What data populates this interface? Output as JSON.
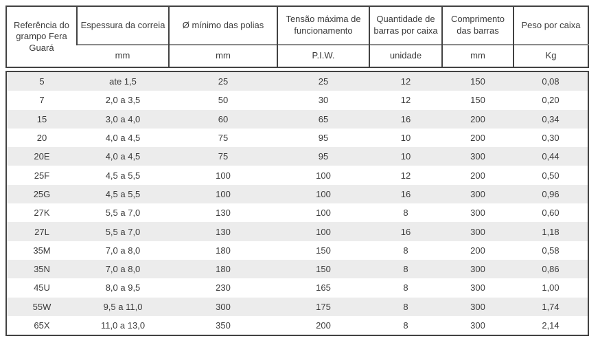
{
  "colors": {
    "border": "#424242",
    "separator": "#8a8a8a",
    "stripe": "#ececec",
    "text": "#3b3b3b"
  },
  "table": {
    "columns": [
      {
        "label": "Referência do grampo Fera Guará",
        "unit": ""
      },
      {
        "label": "Espessura da correia",
        "unit": "mm"
      },
      {
        "label": "Ø mínimo das polias",
        "unit": "mm"
      },
      {
        "label": "Tensão máxima de funcionamento",
        "unit": "P.I.W."
      },
      {
        "label": "Quantidade de barras por caixa",
        "unit": "unidade"
      },
      {
        "label": "Comprimento das barras",
        "unit": "mm"
      },
      {
        "label": "Peso por caixa",
        "unit": "Kg"
      }
    ],
    "rows": [
      [
        "5",
        "ate 1,5",
        "25",
        "25",
        "12",
        "150",
        "0,08"
      ],
      [
        "7",
        "2,0 a 3,5",
        "50",
        "30",
        "12",
        "150",
        "0,20"
      ],
      [
        "15",
        "3,0 a 4,0",
        "60",
        "65",
        "16",
        "200",
        "0,34"
      ],
      [
        "20",
        "4,0 a 4,5",
        "75",
        "95",
        "10",
        "200",
        "0,30"
      ],
      [
        "20E",
        "4,0 a 4,5",
        "75",
        "95",
        "10",
        "300",
        "0,44"
      ],
      [
        "25F",
        "4,5 a 5,5",
        "100",
        "100",
        "12",
        "200",
        "0,50"
      ],
      [
        "25G",
        "4,5 a 5,5",
        "100",
        "100",
        "16",
        "300",
        "0,96"
      ],
      [
        "27K",
        "5,5 a 7,0",
        "130",
        "100",
        "8",
        "300",
        "0,60"
      ],
      [
        "27L",
        "5,5 a 7,0",
        "130",
        "100",
        "16",
        "300",
        "1,18"
      ],
      [
        "35M",
        "7,0 a 8,0",
        "180",
        "150",
        "8",
        "200",
        "0,58"
      ],
      [
        "35N",
        "7,0 a 8,0",
        "180",
        "150",
        "8",
        "300",
        "0,86"
      ],
      [
        "45U",
        "8,0 a 9,5",
        "230",
        "165",
        "8",
        "300",
        "1,00"
      ],
      [
        "55W",
        "9,5 a 11,0",
        "300",
        "175",
        "8",
        "300",
        "1,74"
      ],
      [
        "65X",
        "11,0 a 13,0",
        "350",
        "200",
        "8",
        "300",
        "2,14"
      ]
    ]
  },
  "chart_data": {
    "type": "table",
    "title": "",
    "columns": [
      "Referência do grampo Fera Guará",
      "Espessura da correia (mm)",
      "Ø mínimo das polias (mm)",
      "Tensão máxima de funcionamento (P.I.W.)",
      "Quantidade de barras por caixa (unidade)",
      "Comprimento das barras (mm)",
      "Peso por caixa (Kg)"
    ],
    "rows": [
      [
        "5",
        "ate 1,5",
        25,
        25,
        12,
        150,
        "0,08"
      ],
      [
        "7",
        "2,0 a 3,5",
        50,
        30,
        12,
        150,
        "0,20"
      ],
      [
        "15",
        "3,0 a 4,0",
        60,
        65,
        16,
        200,
        "0,34"
      ],
      [
        "20",
        "4,0 a 4,5",
        75,
        95,
        10,
        200,
        "0,30"
      ],
      [
        "20E",
        "4,0 a 4,5",
        75,
        95,
        10,
        300,
        "0,44"
      ],
      [
        "25F",
        "4,5 a 5,5",
        100,
        100,
        12,
        200,
        "0,50"
      ],
      [
        "25G",
        "4,5 a 5,5",
        100,
        100,
        16,
        300,
        "0,96"
      ],
      [
        "27K",
        "5,5 a 7,0",
        130,
        100,
        8,
        300,
        "0,60"
      ],
      [
        "27L",
        "5,5 a 7,0",
        130,
        100,
        16,
        300,
        "1,18"
      ],
      [
        "35M",
        "7,0 a 8,0",
        180,
        150,
        8,
        200,
        "0,58"
      ],
      [
        "35N",
        "7,0 a 8,0",
        180,
        150,
        8,
        300,
        "0,86"
      ],
      [
        "45U",
        "8,0 a 9,5",
        230,
        165,
        8,
        300,
        "1,00"
      ],
      [
        "55W",
        "9,5 a 11,0",
        300,
        175,
        8,
        300,
        "1,74"
      ],
      [
        "65X",
        "11,0 a 13,0",
        350,
        200,
        8,
        300,
        "2,14"
      ]
    ]
  }
}
